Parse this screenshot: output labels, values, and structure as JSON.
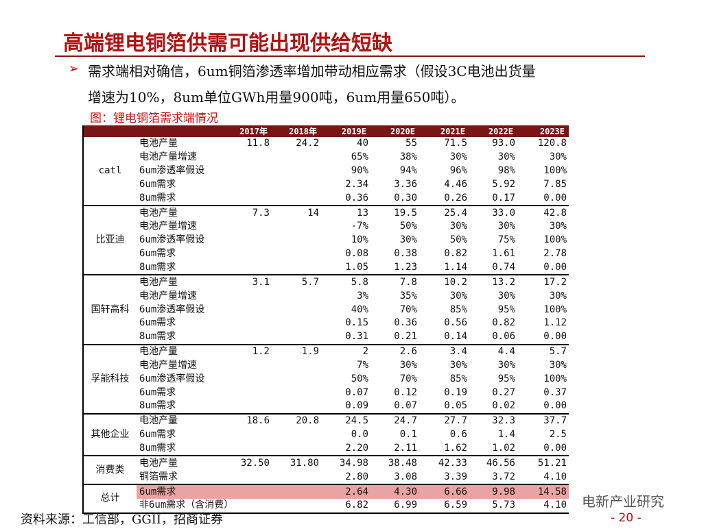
{
  "title": "高端锂电铜箔供需可能出现供给短缺",
  "bullet": {
    "lines": [
      "需求端相对确信，6um铜箔渗透率增加带动相应需求（假设3C电池出货量",
      "增速为10%，8um单位GWh用量900吨，6um用量650吨）。"
    ]
  },
  "caption": "图：锂电铜箔需求端情况",
  "table": {
    "header": [
      "2017年",
      "2018年",
      "2019E",
      "2020E",
      "2021E",
      "2022E",
      "2023E"
    ],
    "groups": [
      {
        "name": "catl",
        "rows": [
          {
            "label": "电池产量",
            "cells": [
              "11.8",
              "24.2",
              "40",
              "55",
              "71.5",
              "93.0",
              "120.8"
            ]
          },
          {
            "label": "电池产量增速",
            "cells": [
              null,
              null,
              "65%",
              "38%",
              "30%",
              "30%",
              "30%"
            ]
          },
          {
            "label": "6um渗透率假设",
            "cells": [
              null,
              null,
              "90%",
              "94%",
              "96%",
              "98%",
              "100%"
            ]
          },
          {
            "label": "6um需求",
            "cells": [
              null,
              null,
              "2.34",
              "3.36",
              "4.46",
              "5.92",
              "7.85"
            ]
          },
          {
            "label": "8um需求",
            "cells": [
              null,
              null,
              "0.36",
              "0.30",
              "0.26",
              "0.17",
              "0.00"
            ]
          }
        ]
      },
      {
        "name": "比亚迪",
        "rows": [
          {
            "label": "电池产量",
            "cells": [
              "7.3",
              "14",
              "13",
              "19.5",
              "25.4",
              "33.0",
              "42.8"
            ]
          },
          {
            "label": "电池产量增速",
            "cells": [
              null,
              null,
              "-7%",
              "50%",
              "30%",
              "30%",
              "30%"
            ]
          },
          {
            "label": "6um渗透率假设",
            "cells": [
              null,
              null,
              "10%",
              "30%",
              "50%",
              "75%",
              "100%"
            ]
          },
          {
            "label": "6um需求",
            "cells": [
              null,
              null,
              "0.08",
              "0.38",
              "0.82",
              "1.61",
              "2.78"
            ]
          },
          {
            "label": "8um需求",
            "cells": [
              null,
              null,
              "1.05",
              "1.23",
              "1.14",
              "0.74",
              "0.00"
            ]
          }
        ]
      },
      {
        "name": "国轩高科",
        "rows": [
          {
            "label": "电池产量",
            "cells": [
              "3.1",
              "5.7",
              "5.8",
              "7.8",
              "10.2",
              "13.2",
              "17.2"
            ]
          },
          {
            "label": "电池产量增速",
            "cells": [
              null,
              null,
              "3%",
              "35%",
              "30%",
              "30%",
              "30%"
            ]
          },
          {
            "label": "6um渗透率假设",
            "cells": [
              null,
              null,
              "40%",
              "70%",
              "85%",
              "95%",
              "100%"
            ]
          },
          {
            "label": "6um需求",
            "cells": [
              null,
              null,
              "0.15",
              "0.36",
              "0.56",
              "0.82",
              "1.12"
            ]
          },
          {
            "label": "8um需求",
            "cells": [
              null,
              null,
              "0.31",
              "0.21",
              "0.14",
              "0.06",
              "0.00"
            ]
          }
        ]
      },
      {
        "name": "孚能科技",
        "rows": [
          {
            "label": "电池产量",
            "cells": [
              "1.2",
              "1.9",
              "2",
              "2.6",
              "3.4",
              "4.4",
              "5.7"
            ]
          },
          {
            "label": "电池产量增速",
            "cells": [
              null,
              null,
              "7%",
              "30%",
              "30%",
              "30%",
              "30%"
            ]
          },
          {
            "label": "6um渗透率假设",
            "cells": [
              null,
              null,
              "50%",
              "70%",
              "85%",
              "95%",
              "100%"
            ]
          },
          {
            "label": "6um需求",
            "cells": [
              null,
              null,
              "0.07",
              "0.12",
              "0.19",
              "0.27",
              "0.37"
            ]
          },
          {
            "label": "8um需求",
            "cells": [
              null,
              null,
              "0.09",
              "0.07",
              "0.05",
              "0.02",
              "0.00"
            ]
          }
        ]
      },
      {
        "name": "其他企业",
        "rows": [
          {
            "label": "电池产量",
            "cells": [
              "18.6",
              "20.8",
              "24.5",
              "24.7",
              "27.7",
              "32.3",
              "37.7"
            ]
          },
          {
            "label": "6um需求",
            "cells": [
              null,
              null,
              "0.0",
              "0.1",
              "0.6",
              "1.4",
              "2.5"
            ]
          },
          {
            "label": "8um需求",
            "cells": [
              null,
              null,
              "2.20",
              "2.11",
              "1.62",
              "1.02",
              "0.00"
            ]
          }
        ]
      },
      {
        "name": "消费类",
        "rows": [
          {
            "label": "电池产量",
            "cells": [
              "32.50",
              "31.80",
              "34.98",
              "38.48",
              "42.33",
              "46.56",
              "51.21"
            ]
          },
          {
            "label": "铜箔需求",
            "cells": [
              null,
              null,
              "2.80",
              "3.08",
              "3.39",
              "3.72",
              "4.10"
            ]
          }
        ]
      },
      {
        "name": "总计",
        "rows": [
          {
            "label": "6um需求",
            "highlight": true,
            "cells": [
              null,
              null,
              "2.64",
              "4.30",
              "6.66",
              "9.98",
              "14.58"
            ]
          },
          {
            "label": "非6um需求（含消费）",
            "cells": [
              null,
              null,
              "6.82",
              "6.99",
              "6.59",
              "5.73",
              "4.10"
            ]
          }
        ]
      }
    ]
  },
  "source": "资料来源：工信部，GGII，招商证券",
  "watermark": "电新产业研究",
  "page_number": "- 20 -"
}
